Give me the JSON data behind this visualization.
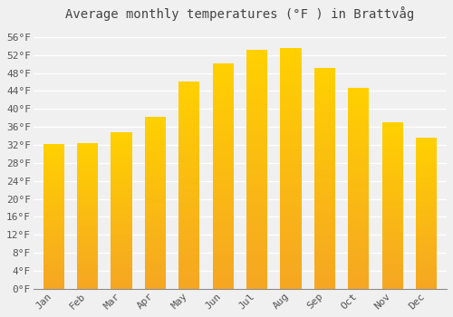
{
  "months": [
    "Jan",
    "Feb",
    "Mar",
    "Apr",
    "May",
    "Jun",
    "Jul",
    "Aug",
    "Sep",
    "Oct",
    "Nov",
    "Dec"
  ],
  "values": [
    32.2,
    32.5,
    34.9,
    38.3,
    46.2,
    50.2,
    53.1,
    53.6,
    49.1,
    44.8,
    37.0,
    33.6
  ],
  "bar_color_top": "#FFBE00",
  "bar_color_bottom": "#F5A623",
  "title": "Average monthly temperatures (°F ) in Brattvåg",
  "ylim_min": 0,
  "ylim_max": 58,
  "ytick_step": 4,
  "background_color": "#f0f0f0",
  "plot_bg_color": "#f0f0f0",
  "grid_color": "#ffffff",
  "title_fontsize": 10,
  "tick_fontsize": 8,
  "tick_color": "#555555",
  "title_color": "#444444"
}
